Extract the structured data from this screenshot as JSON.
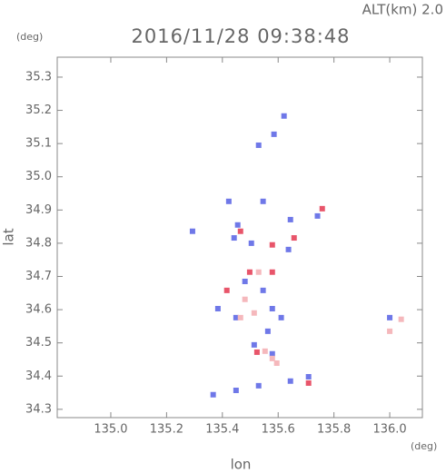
{
  "chart_data": {
    "type": "scatter",
    "title": "2016/11/28 09:38:48",
    "annotation": "ALT(km) 2.0",
    "y_unit": "(deg)",
    "x_unit": "(deg)",
    "xlabel": "lon",
    "ylabel": "lat",
    "xlim": [
      134.808,
      136.117
    ],
    "ylim": [
      34.275,
      35.36
    ],
    "xticks": [
      {
        "value": 135.0,
        "label": "135.0"
      },
      135.2,
      135.4,
      135.6,
      135.8,
      {
        "value": 136.0,
        "label": "136.0"
      }
    ],
    "yticks": [
      34.3,
      34.4,
      34.5,
      34.6,
      34.7,
      34.8,
      34.9,
      {
        "value": 35.0,
        "label": "35.0"
      },
      35.1,
      35.2,
      35.3
    ],
    "series": [
      {
        "color": "#6f78e8",
        "x": [
          135.621,
          135.53,
          135.585,
          135.423,
          135.546,
          135.293,
          135.455,
          135.644,
          135.741,
          135.442,
          135.504,
          135.637,
          135.384,
          135.481,
          135.546,
          135.579,
          135.611,
          135.449,
          135.514,
          135.579,
          135.563,
          135.709,
          135.367,
          135.449,
          135.53,
          135.644,
          136.0
        ],
        "y": [
          35.183,
          35.095,
          35.128,
          34.926,
          34.926,
          34.836,
          34.855,
          34.871,
          34.882,
          34.816,
          34.8,
          34.781,
          34.603,
          34.685,
          34.658,
          34.603,
          34.576,
          34.576,
          34.494,
          34.467,
          34.535,
          34.398,
          34.344,
          34.357,
          34.371,
          34.385,
          34.576
        ]
      },
      {
        "color": "#e8556a",
        "x": [
          135.579,
          135.465,
          135.657,
          135.498,
          135.579,
          135.416,
          135.524,
          135.709,
          135.758
        ],
        "y": [
          34.795,
          34.836,
          34.816,
          34.713,
          34.713,
          34.658,
          34.472,
          34.379,
          34.904
        ]
      },
      {
        "color": "#f5b8bc",
        "x": [
          135.579,
          135.595,
          135.481,
          135.514,
          135.53,
          136.0,
          136.041,
          135.553,
          135.465
        ],
        "y": [
          34.453,
          34.439,
          34.631,
          34.59,
          34.713,
          34.535,
          34.571,
          34.475,
          34.576
        ]
      }
    ]
  }
}
